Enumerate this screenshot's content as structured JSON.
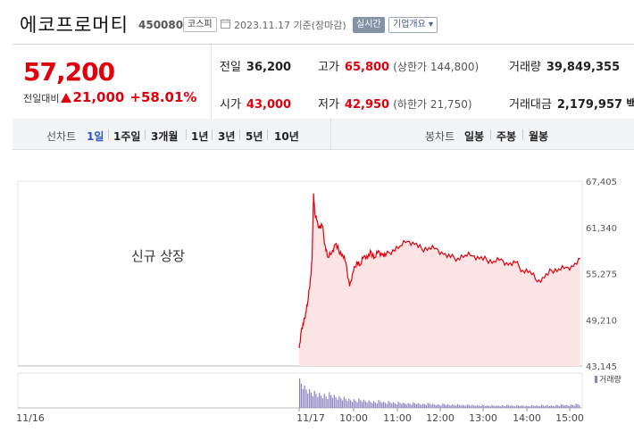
{
  "header": {
    "company_name": "에코프로머티",
    "code": "450080",
    "market_badge": "코스피",
    "date_text": "2023.11.17 기준(장마감)",
    "realtime_label": "실시간",
    "company_info_label": "기업개요 ▾"
  },
  "quote": {
    "price": "57,200",
    "change_label": "전일대비",
    "change_value": "21,000",
    "change_percent": "+58.01%",
    "prev_close": {
      "label": "전일",
      "value": "36,200"
    },
    "open": {
      "label": "시가",
      "value": "43,000"
    },
    "high": {
      "label": "고가",
      "value": "65,800",
      "sub": "(상한가 144,800)"
    },
    "low": {
      "label": "저가",
      "value": "42,950",
      "sub": "(하한가 21,750)"
    },
    "volume": {
      "label": "거래량",
      "value": "39,849,355"
    },
    "amount": {
      "label": "거래대금",
      "value": "2,179,957",
      "unit": "백만"
    }
  },
  "tabs": {
    "line_chart_label": "선차트",
    "periods": [
      "1일",
      "1주일",
      "3개월",
      "1년",
      "3년",
      "5년",
      "10년"
    ],
    "active_period": "1일",
    "candle_chart_label": "봉차트",
    "candle_periods": [
      "일봉",
      "주봉",
      "월봉"
    ]
  },
  "chart": {
    "caption": "신규 상장",
    "volume_legend": "거래량",
    "colors": {
      "line": "#e0000d",
      "fill": "#fde4e4",
      "volume": "#8a7fc0",
      "up": "#e0000d"
    }
  },
  "chart_data": {
    "type": "area",
    "x_tick_labels": [
      "11/16",
      "11/17",
      "10:00",
      "11:00",
      "12:00",
      "13:00",
      "14:00",
      "15:00"
    ],
    "y_tick_labels": [
      "67,405",
      "61,340",
      "55,275",
      "49,210",
      "43,145"
    ],
    "ylim": [
      43145,
      67405
    ],
    "series": [
      {
        "x": [
          "09:00",
          "09:03",
          "09:06",
          "09:09",
          "09:12",
          "09:15",
          "09:18",
          "09:20",
          "09:22",
          "09:25",
          "09:28",
          "09:32",
          "09:36",
          "09:40",
          "09:45",
          "09:50",
          "09:55",
          "10:00",
          "10:05",
          "10:10",
          "10:15",
          "10:20",
          "10:25",
          "10:30",
          "10:35",
          "10:40",
          "10:45",
          "10:50",
          "10:55",
          "11:00",
          "11:10",
          "11:20",
          "11:30",
          "11:40",
          "11:50",
          "12:00",
          "12:10",
          "12:20",
          "12:30",
          "12:40",
          "12:50",
          "13:00",
          "13:10",
          "13:20",
          "13:30",
          "13:40",
          "13:50",
          "14:00",
          "14:10",
          "14:20",
          "14:30",
          "14:40",
          "14:50",
          "15:00",
          "15:10",
          "15:20",
          "15:30"
        ],
        "values": [
          45500,
          47800,
          48600,
          50200,
          51600,
          53800,
          57200,
          65800,
          63000,
          62200,
          61200,
          61600,
          59000,
          57400,
          57900,
          59100,
          58300,
          57800,
          56700,
          53600,
          55400,
          56900,
          56400,
          57600,
          57300,
          58100,
          57400,
          58300,
          57700,
          57600,
          58400,
          58900,
          59500,
          59100,
          58500,
          58700,
          58600,
          57800,
          57400,
          57300,
          57700,
          57600,
          57200,
          57100,
          56900,
          57200,
          56400,
          56700,
          55700,
          55600,
          54200,
          54700,
          55700,
          55900,
          56100,
          56200,
          57200
        ]
      }
    ],
    "volume_note": "volume bars (relative heights)",
    "volume": [
      0.95,
      0.72,
      0.6,
      0.55,
      0.48,
      0.45,
      0.5,
      0.42,
      0.38,
      0.35,
      0.3,
      0.28,
      0.3,
      0.26,
      0.24,
      0.22,
      0.25,
      0.2,
      0.22,
      0.18,
      0.2,
      0.17,
      0.16,
      0.18,
      0.15,
      0.14,
      0.16,
      0.13,
      0.12,
      0.14,
      0.12,
      0.11,
      0.12,
      0.1,
      0.11,
      0.1,
      0.09,
      0.1,
      0.08,
      0.09,
      0.08,
      0.09,
      0.1,
      0.08,
      0.09,
      0.08,
      0.07,
      0.09,
      0.08,
      0.1,
      0.09,
      0.08,
      0.1,
      0.12,
      0.1,
      0.11,
      0.14
    ]
  }
}
